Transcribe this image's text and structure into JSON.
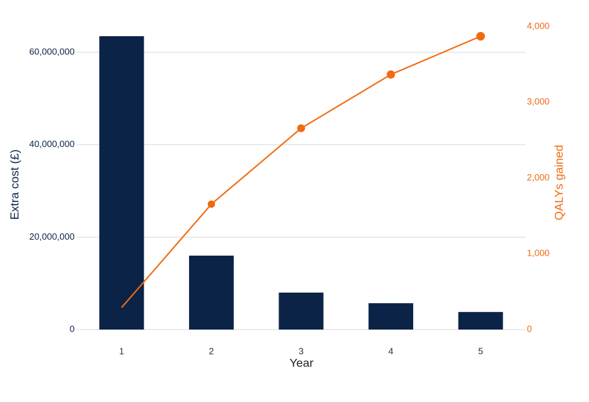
{
  "chart_data": {
    "type": "bar-line",
    "categories": [
      "1",
      "2",
      "3",
      "4",
      "5"
    ],
    "x_label": "Year",
    "y_label": "Extra cost (£)",
    "y2_label": "QALYs gained",
    "series": [
      {
        "name": "Extra cost (£)",
        "type": "bar",
        "color": "#0b2347",
        "values": [
          63500000,
          16000000,
          8000000,
          5700000,
          3800000
        ]
      },
      {
        "name": "QALYs gained",
        "type": "line",
        "axis": "y2",
        "color": "#f26a10",
        "values": [
          290,
          1655,
          2657,
          3366,
          3871
        ]
      }
    ],
    "ylim": [
      0,
      65600000
    ],
    "yticks": [
      0,
      {
        "value": 20000000,
        "label": "20,000,000"
      },
      {
        "value": 40000000,
        "label": "40,000,000"
      },
      {
        "value": 60000000,
        "label": "60,000,000"
      }
    ],
    "y2lim": [
      0,
      4000
    ],
    "y2ticks": [
      0,
      {
        "value": 1000,
        "label": "1,000"
      },
      {
        "value": 2000,
        "label": "2,000"
      },
      {
        "value": 3000,
        "label": "3,000"
      },
      {
        "value": 4000,
        "label": "4,000"
      }
    ],
    "grid": true
  }
}
